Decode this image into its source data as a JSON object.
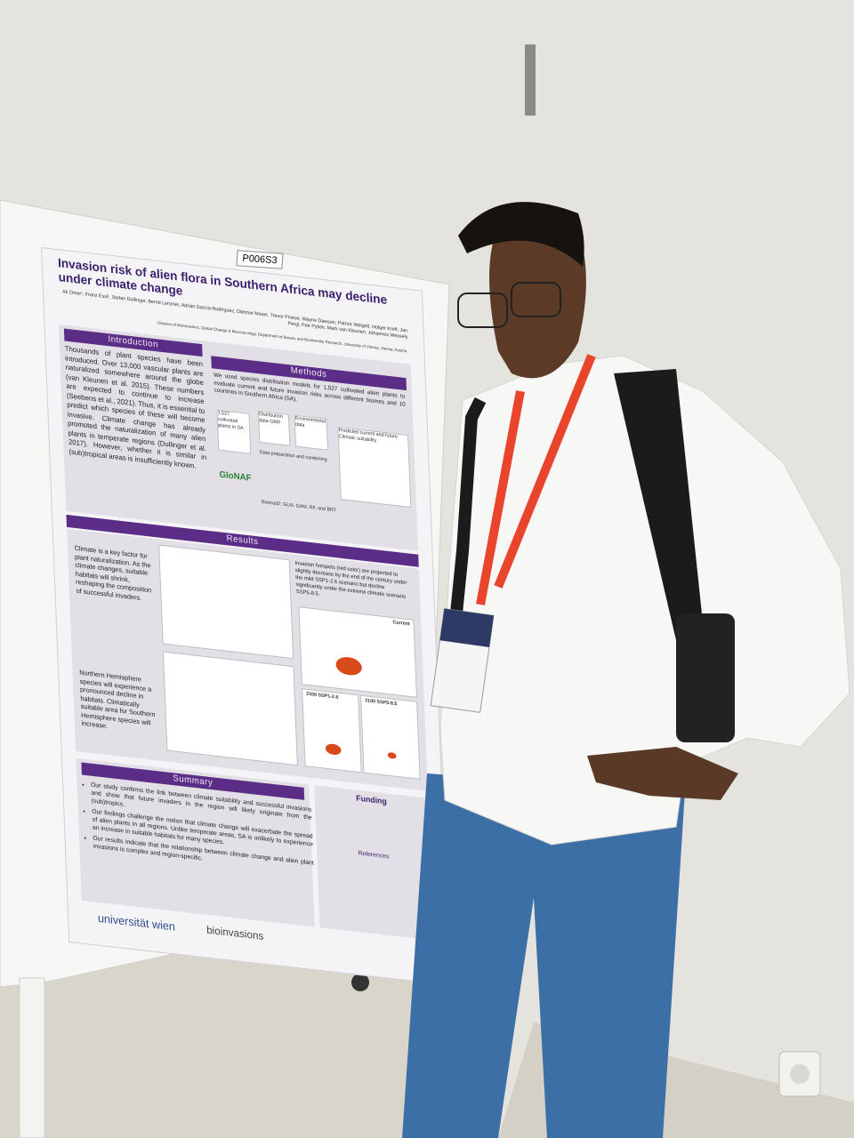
{
  "board_label": "P006S3",
  "poster": {
    "title": "Invasion risk of alien flora in Southern Africa may decline under climate change",
    "authors": "Ali Omer¹, Franz Essl¹, Stefan Dullinger, Bernd Lenzner, Adrián García-Rodríguez, Dietmar Moser, Trevor Fristoe, Wayne Dawson, Patrick Weigelt, Holger Kreft, Jan Pergl, Petr Pyšek, Mark van Kleunen, Johannes Wessely",
    "affiliation": "¹Division of BioInvasions, Global Change & Macroecology, Department of Botany and Biodiversity Research, University of Vienna, Vienna, Austria",
    "introduction": {
      "heading": "Introduction",
      "text": "Thousands of plant species have been introduced. Over 13,000 vascular plants are naturalized somewhere around the globe (van Kleunen et al. 2015). These numbers are expected to continue to increase (Seebens et al., 2021). Thus, it is essential to predict which species of these will become invasive. Climate change has already promoted the naturalization of many alien plants in temperate regions (Dullinger et al. 2017). However, whether it is similar in (sub)tropical areas is insufficiently known."
    },
    "methods": {
      "heading": "Methods",
      "text": "We used species distribution models for 1,527 cultivated alien plants to evaluate current and future invasion risks across different biomes and 10 countries in Southern Africa (SA).",
      "diagram": [
        "1,527 cultivated plants in SA",
        "Distribution data GBIF",
        "Environmental data",
        "Data preparation and combining",
        "Predicted current and future Climatic suitability",
        "Biomod2: GLM, GAM, RF, and BRT",
        "GloNAF"
      ]
    },
    "results": {
      "heading": "Results",
      "text_1": "Climate is a key factor for plant naturalization. As the climate changes, suitable habitats will shrink, reshaping the composition of successful invaders.",
      "text_2": "Northern Hemisphere species will experience a pronounced decline in habitats. Climatically suitable area for Southern Hemisphere species will increase.",
      "text_3": "Invasion hotspots (red color) are projected to slightly decrease by the end of the century under the mild SSP1-2.6 scenario but decline significantly under the extreme climatic scenario SSP5-8.5.",
      "panels": [
        "Current",
        "2100 SSP1-2.6",
        "2100 SSP5-8.5"
      ]
    },
    "summary": {
      "heading": "Summary",
      "bullets": [
        "Our study confirms the link between climate suitability and successful invasions and show that future invaders in the region will likely originate from the (sub)tropics.",
        "Our findings challenge the notion that climate change will exacerbate the spread of alien plants in all regions. Unlike temperate areas, SA is unlikely to experience an increase in suitable habitats for many species.",
        "Our results indicate that the relationship between climate change and alien plant invasions is complex and region-specific."
      ]
    },
    "funding": "Funding",
    "references": "References",
    "logos": [
      "universität wien",
      "bioinvasions"
    ]
  }
}
